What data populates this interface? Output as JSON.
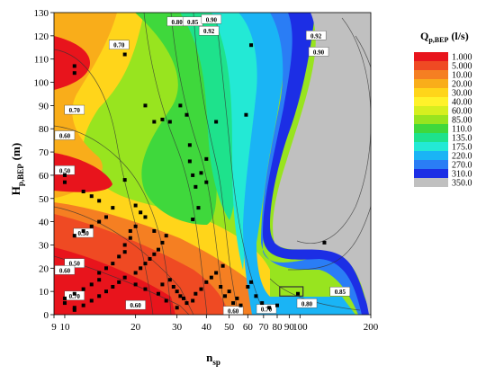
{
  "chart_data": {
    "type": "heatmap",
    "title": "",
    "xlabel": "n",
    "xlabel_sub": "sp",
    "ylabel": "H",
    "ylabel_sub": "p,BEP",
    "ylabel_unit": "(m)",
    "x_scale": "log",
    "xlim": [
      9,
      200
    ],
    "ylim": [
      0,
      130
    ],
    "x_ticks": [
      9,
      10,
      20,
      30,
      40,
      50,
      60,
      70,
      80,
      90,
      100,
      200
    ],
    "x_tick_labels": [
      "9",
      "10",
      "20",
      "30",
      "40",
      "50",
      "60",
      "70",
      "80",
      "90",
      "100",
      "200"
    ],
    "y_ticks": [
      0,
      10,
      20,
      30,
      40,
      50,
      60,
      70,
      80,
      90,
      100,
      110,
      120,
      130
    ],
    "grid": false,
    "legend": {
      "title": "Q",
      "title_sub": "p,BEP",
      "title_unit": "(l/s)",
      "placement": "right",
      "levels": [
        {
          "label": "1.000",
          "color": "#e8141c"
        },
        {
          "label": "5.000",
          "color": "#ef4a23"
        },
        {
          "label": "10.00",
          "color": "#f57f22"
        },
        {
          "label": "20.00",
          "color": "#f9ad1a"
        },
        {
          "label": "30.00",
          "color": "#ffd51a"
        },
        {
          "label": "40.00",
          "color": "#fff22a"
        },
        {
          "label": "60.00",
          "color": "#d6ef1f"
        },
        {
          "label": "85.00",
          "color": "#98e41f"
        },
        {
          "label": "110.0",
          "color": "#3fd83c"
        },
        {
          "label": "135.0",
          "color": "#1ee28c"
        },
        {
          "label": "175.0",
          "color": "#23e9d5"
        },
        {
          "label": "220.0",
          "color": "#1ab4f5"
        },
        {
          "label": "270.0",
          "color": "#2a7df5"
        },
        {
          "label": "310.0",
          "color": "#1c2ee5"
        },
        {
          "label": "350.0",
          "color": "#c0c0c0"
        }
      ]
    },
    "contour_labels": [
      {
        "text": "0.70",
        "x": 17,
        "y": 116
      },
      {
        "text": "0.80",
        "x": 30,
        "y": 126
      },
      {
        "text": "0.85",
        "x": 35,
        "y": 126
      },
      {
        "text": "0.90",
        "x": 42,
        "y": 127
      },
      {
        "text": "0.92",
        "x": 41,
        "y": 122
      },
      {
        "text": "0.92",
        "x": 117,
        "y": 120
      },
      {
        "text": "0.90",
        "x": 120,
        "y": 113
      },
      {
        "text": "0.70",
        "x": 11,
        "y": 88
      },
      {
        "text": "0.60",
        "x": 10,
        "y": 77
      },
      {
        "text": "0.50",
        "x": 10,
        "y": 62
      },
      {
        "text": "0.50",
        "x": 12,
        "y": 35
      },
      {
        "text": "0.50",
        "x": 11,
        "y": 22
      },
      {
        "text": "0.60",
        "x": 10,
        "y": 19
      },
      {
        "text": "0.70",
        "x": 11,
        "y": 8
      },
      {
        "text": "0.60",
        "x": 20,
        "y": 4
      },
      {
        "text": "0.60",
        "x": 52,
        "y": 1.5
      },
      {
        "text": "0.70",
        "x": 72,
        "y": 2.3
      },
      {
        "text": "0.80",
        "x": 107,
        "y": 4.7
      },
      {
        "text": "0.85",
        "x": 148,
        "y": 9.8
      }
    ],
    "markers": [
      [
        11,
        107
      ],
      [
        11,
        104
      ],
      [
        18,
        112
      ],
      [
        22,
        90
      ],
      [
        24,
        83
      ],
      [
        26,
        84
      ],
      [
        28,
        83
      ],
      [
        31,
        90
      ],
      [
        33,
        86
      ],
      [
        44,
        83
      ],
      [
        59,
        86
      ],
      [
        62,
        116
      ],
      [
        10,
        60
      ],
      [
        10,
        57
      ],
      [
        12,
        53
      ],
      [
        13,
        51
      ],
      [
        14,
        49
      ],
      [
        18,
        58
      ],
      [
        16,
        46
      ],
      [
        15,
        42
      ],
      [
        14,
        40
      ],
      [
        13,
        38
      ],
      [
        12,
        36
      ],
      [
        11,
        34
      ],
      [
        20,
        47
      ],
      [
        21,
        44
      ],
      [
        22,
        42
      ],
      [
        20,
        38
      ],
      [
        19,
        36
      ],
      [
        19,
        33
      ],
      [
        18,
        30
      ],
      [
        18,
        27
      ],
      [
        17,
        25
      ],
      [
        16,
        22
      ],
      [
        15,
        20
      ],
      [
        14,
        18
      ],
      [
        14,
        15
      ],
      [
        13,
        13
      ],
      [
        12,
        11
      ],
      [
        11,
        9
      ],
      [
        10,
        7
      ],
      [
        10,
        5
      ],
      [
        11,
        3
      ],
      [
        11,
        2
      ],
      [
        12,
        4
      ],
      [
        13,
        6
      ],
      [
        14,
        8
      ],
      [
        15,
        10
      ],
      [
        16,
        12
      ],
      [
        17,
        14
      ],
      [
        18,
        16
      ],
      [
        20,
        18
      ],
      [
        21,
        20
      ],
      [
        22,
        22
      ],
      [
        23,
        24
      ],
      [
        24,
        26
      ],
      [
        25,
        28
      ],
      [
        26,
        31
      ],
      [
        27,
        34
      ],
      [
        24,
        36
      ],
      [
        26,
        13
      ],
      [
        28,
        15
      ],
      [
        29,
        12
      ],
      [
        30,
        10
      ],
      [
        31,
        8
      ],
      [
        32,
        7
      ],
      [
        33,
        5
      ],
      [
        35,
        6
      ],
      [
        36,
        9
      ],
      [
        38,
        11
      ],
      [
        40,
        14
      ],
      [
        42,
        16
      ],
      [
        44,
        18
      ],
      [
        47,
        21
      ],
      [
        50,
        10
      ],
      [
        54,
        7
      ],
      [
        56,
        4
      ],
      [
        60,
        12
      ],
      [
        62,
        14
      ],
      [
        65,
        8
      ],
      [
        69,
        5
      ],
      [
        74,
        3
      ],
      [
        80,
        4
      ],
      [
        98,
        9
      ],
      [
        127,
        31
      ],
      [
        35,
        60
      ],
      [
        36,
        55
      ],
      [
        38,
        61
      ],
      [
        40,
        57
      ],
      [
        34,
        73
      ],
      [
        40,
        67
      ],
      [
        35,
        41
      ],
      [
        37,
        46
      ],
      [
        34,
        66
      ],
      [
        46,
        12
      ],
      [
        48,
        8
      ],
      [
        52,
        5
      ],
      [
        30,
        3
      ],
      [
        27,
        6
      ],
      [
        25,
        9
      ],
      [
        22,
        11
      ],
      [
        20,
        13
      ]
    ],
    "highlight_box": {
      "x": [
        82,
        103
      ],
      "y": [
        8,
        12
      ]
    }
  }
}
